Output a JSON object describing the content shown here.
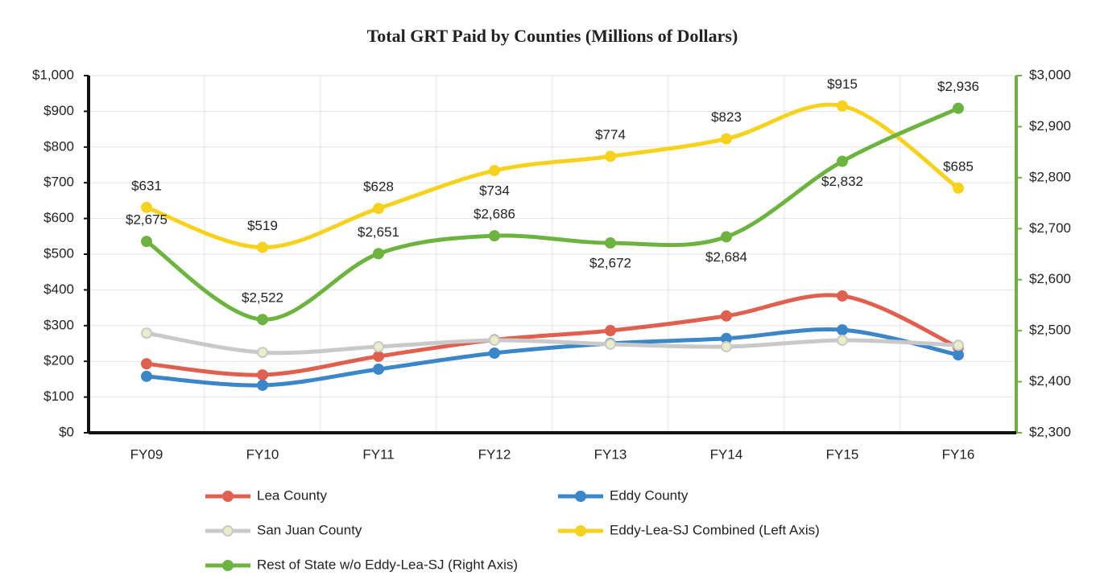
{
  "chart_data": {
    "type": "line",
    "title": "Total GRT Paid by Counties (Millions of Dollars)",
    "categories": [
      "FY09",
      "FY10",
      "FY11",
      "FY12",
      "FY13",
      "FY14",
      "FY15",
      "FY16"
    ],
    "ylim": [
      0,
      1000
    ],
    "yticks": [
      {
        "value": 0,
        "label": "$0"
      },
      {
        "value": 100,
        "label": "$100"
      },
      {
        "value": 200,
        "label": "$200"
      },
      {
        "value": 300,
        "label": "$300"
      },
      {
        "value": 400,
        "label": "$400"
      },
      {
        "value": 500,
        "label": "$500"
      },
      {
        "value": 600,
        "label": "$600"
      },
      {
        "value": 700,
        "label": "$700"
      },
      {
        "value": 800,
        "label": "$800"
      },
      {
        "value": 900,
        "label": "$900"
      },
      {
        "value": 1000,
        "label": "$1,000"
      }
    ],
    "y2lim": [
      2300,
      3000
    ],
    "y2ticks": [
      {
        "value": 2300,
        "label": "$2,300"
      },
      {
        "value": 2400,
        "label": "$2,400"
      },
      {
        "value": 2500,
        "label": "$2,500"
      },
      {
        "value": 2600,
        "label": "$2,600"
      },
      {
        "value": 2700,
        "label": "$2,700"
      },
      {
        "value": 2800,
        "label": "$2,800"
      },
      {
        "value": 2900,
        "label": "$2,900"
      },
      {
        "value": 3000,
        "label": "$3,000"
      }
    ],
    "grid": true,
    "legend": "bottom",
    "series": [
      {
        "name": "Lea County",
        "color": "#e0604f",
        "values": [
          193,
          162,
          214,
          260,
          286,
          327,
          383,
          239
        ]
      },
      {
        "name": "Eddy County",
        "color": "#3a86c8",
        "values": [
          158,
          133,
          178,
          223,
          250,
          264,
          288,
          218
        ]
      },
      {
        "name": "San Juan County",
        "color": "#c9c9c9",
        "values": [
          279,
          225,
          241,
          259,
          248,
          241,
          259,
          245
        ]
      },
      {
        "name": "Eddy-Lea-SJ Combined (Left Axis)",
        "color": "#f6d21e",
        "values": [
          631,
          519,
          628,
          734,
          774,
          823,
          915,
          685
        ],
        "value_labels": [
          "$631",
          "$519",
          "$628",
          "$734",
          "$774",
          "$823",
          "$915",
          "$685"
        ]
      },
      {
        "name": "Rest of State w/o Eddy-Lea-SJ (Right Axis)",
        "color": "#6db33f",
        "axis": "y2",
        "values": [
          2675,
          2522,
          2651,
          2686,
          2672,
          2684,
          2832,
          2936
        ],
        "value_labels": [
          "$2,675",
          "$2,522",
          "$2,651",
          "$2,686",
          "$2,672",
          "$2,684",
          "$2,832",
          "$2,936"
        ]
      }
    ]
  }
}
